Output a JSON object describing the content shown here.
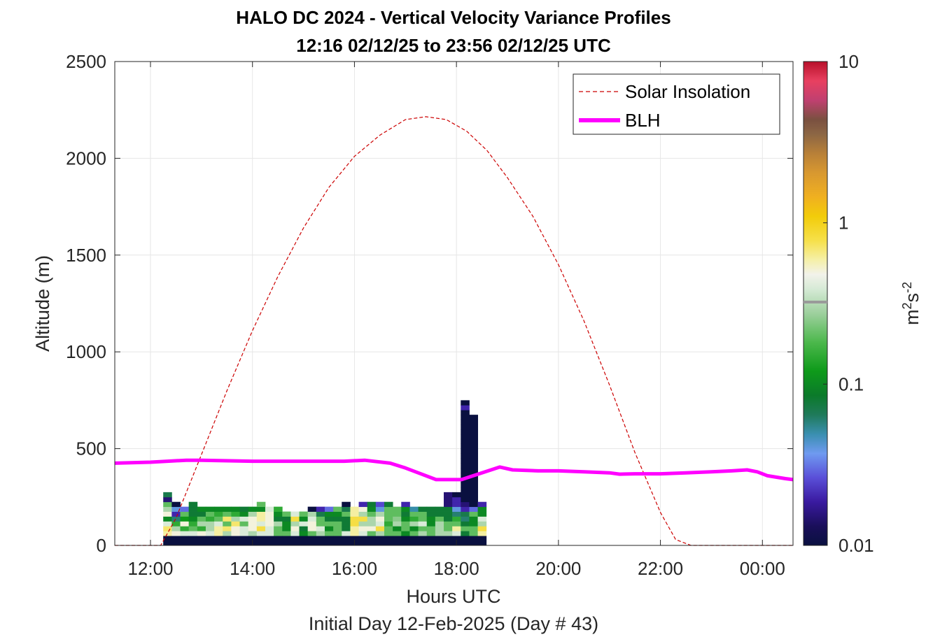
{
  "chart_data": {
    "type": "heatmap",
    "title": [
      "HALO DC 2024 - Vertical Velocity Variance Profiles",
      "12:16 02/12/25 to 23:56 02/12/25  UTC"
    ],
    "xlabel": "Hours UTC",
    "xlabel2": "Initial Day 12-Feb-2025 (Day # 43)",
    "ylabel": "Altitude (m)",
    "xlim": [
      11.3,
      24.6
    ],
    "ylim": [
      0,
      2500
    ],
    "x_ticks": [
      12,
      14,
      16,
      18,
      20,
      22,
      24
    ],
    "x_tick_labels": [
      "12:00",
      "14:00",
      "16:00",
      "18:00",
      "20:00",
      "22:00",
      "00:00"
    ],
    "y_ticks": [
      0,
      500,
      1000,
      1500,
      2000,
      2500
    ],
    "y_tick_labels": [
      "0",
      "500",
      "1000",
      "1500",
      "2000",
      "2500"
    ],
    "grid": true,
    "colorbar": {
      "label": "m²s⁻²",
      "label_base": "m",
      "label_sup1": "2",
      "label_mid": "s",
      "label_sup2": "-2",
      "scale": "log",
      "range": [
        0.01,
        10
      ],
      "ticks": [
        0.01,
        0.1,
        1,
        10
      ],
      "tick_labels": [
        "0.01",
        "0.1",
        "1",
        "10"
      ],
      "colormap_stops": [
        [
          0.0,
          "#0a1040"
        ],
        [
          0.04,
          "#1a0f5a"
        ],
        [
          0.09,
          "#3a1aa0"
        ],
        [
          0.14,
          "#5a4fd8"
        ],
        [
          0.19,
          "#6f9af0"
        ],
        [
          0.23,
          "#3a8fb0"
        ],
        [
          0.27,
          "#1f7a5a"
        ],
        [
          0.31,
          "#0b7a2a"
        ],
        [
          0.36,
          "#0e9a1a"
        ],
        [
          0.42,
          "#4cb84c"
        ],
        [
          0.48,
          "#9ed09e"
        ],
        [
          0.53,
          "#d6ead6"
        ],
        [
          0.56,
          "#f2f2ea"
        ],
        [
          0.59,
          "#f5f0a8"
        ],
        [
          0.63,
          "#f6e04a"
        ],
        [
          0.68,
          "#f2cc0a"
        ],
        [
          0.72,
          "#f0b020"
        ],
        [
          0.77,
          "#d89830"
        ],
        [
          0.81,
          "#b88038"
        ],
        [
          0.85,
          "#8c6644"
        ],
        [
          0.88,
          "#7a5040"
        ],
        [
          0.92,
          "#c04070"
        ],
        [
          0.96,
          "#e84060"
        ],
        [
          1.0,
          "#b8102a"
        ]
      ]
    },
    "legend": {
      "placement": "top-right",
      "entries": [
        {
          "name": "Solar Insolation",
          "style": "dashed",
          "color": "#cc0000"
        },
        {
          "name": "BLH",
          "style": "solid-thick",
          "color": "#ff00ff"
        }
      ]
    },
    "heatmap": {
      "x_start": 12.25,
      "x_step": 0.1667,
      "y_start": 0,
      "y_step": 25,
      "n_rows": 30,
      "columns": [
        [
          0.01,
          0.01,
          0.6,
          0.7,
          0.4,
          0.1,
          0.5,
          0.3,
          0.2,
          0.015,
          0.07
        ],
        [
          0.01,
          0.01,
          0.5,
          0.3,
          0.15,
          0.06,
          0.02,
          0.04,
          0.01
        ],
        [
          0.01,
          0.01,
          0.4,
          0.15,
          0.5,
          0.12,
          0.2,
          0.03
        ],
        [
          0.01,
          0.01,
          0.4,
          0.2,
          0.15,
          0.1,
          0.08,
          0.08,
          0.08
        ],
        [
          0.01,
          0.01,
          0.5,
          0.15,
          0.3,
          0.2,
          0.08,
          0.1
        ],
        [
          0.01,
          0.01,
          0.4,
          0.3,
          0.3,
          0.15,
          0.2,
          0.1
        ],
        [
          0.01,
          0.01,
          0.6,
          0.6,
          0.4,
          0.2,
          0.15,
          0.1
        ],
        [
          0.01,
          0.01,
          0.3,
          0.7,
          0.2,
          0.7,
          0.2,
          0.1
        ],
        [
          0.01,
          0.01,
          0.5,
          0.5,
          0.7,
          0.3,
          0.15,
          0.1
        ],
        [
          0.01,
          0.01,
          0.4,
          0.4,
          0.2,
          0.4,
          0.1,
          0.08
        ],
        [
          0.01,
          0.01,
          0.3,
          0.5,
          0.5,
          0.5,
          0.3,
          0.1
        ],
        [
          0.01,
          0.01,
          0.4,
          0.8,
          0.4,
          0.6,
          0.6,
          0.1,
          0.2
        ],
        [
          0.01,
          0.01,
          0.4,
          0.4,
          0.5,
          0.5,
          0.5,
          0.4
        ],
        [
          0.01,
          0.01,
          0.2,
          0.2,
          0.3,
          0.08,
          0.1,
          0.15
        ],
        [
          0.01,
          0.01,
          0.2,
          0.1,
          0.1,
          0.08,
          0.2
        ],
        [
          0.01,
          0.01,
          0.4,
          0.5,
          0.3,
          0.8,
          0.4
        ],
        [
          0.01,
          0.01,
          0.1,
          0.08,
          0.4,
          0.1,
          0.2
        ],
        [
          0.01,
          0.01,
          0.2,
          0.5,
          0.5,
          0.4,
          0.3,
          0.01
        ],
        [
          0.01,
          0.01,
          0.3,
          0.4,
          0.2,
          0.2,
          0.07,
          0.02
        ],
        [
          0.01,
          0.01,
          0.2,
          0.1,
          0.2,
          0.08,
          0.1,
          0.03
        ],
        [
          0.01,
          0.01,
          0.2,
          0.2,
          0.2,
          0.08,
          0.1,
          0.2
        ],
        [
          0.01,
          0.01,
          0.4,
          0.08,
          0.08,
          0.08,
          0.2,
          0.07,
          0.01
        ],
        [
          0.01,
          0.01,
          0.6,
          0.6,
          0.8,
          0.8,
          0.6,
          0.6
        ],
        [
          0.01,
          0.01,
          0.4,
          0.5,
          0.3,
          0.8,
          0.3,
          0.5,
          0.02
        ],
        [
          0.01,
          0.01,
          0.2,
          0.5,
          0.3,
          0.3,
          0.2,
          0.1,
          0.08
        ],
        [
          0.01,
          0.01,
          0.3,
          0.8,
          0.4,
          0.5,
          0.3,
          0.04,
          0.025
        ],
        [
          0.01,
          0.01,
          0.2,
          0.2,
          0.15,
          0.2,
          0.2,
          0.2,
          0.08
        ],
        [
          0.01,
          0.01,
          0.2,
          0.1,
          0.3,
          0.25,
          0.2,
          0.2
        ],
        [
          0.01,
          0.01,
          0.1,
          0.2,
          0.2,
          0.1,
          0.08,
          0.1,
          0.02
        ],
        [
          0.01,
          0.01,
          0.2,
          0.1,
          0.3,
          0.15,
          0.2,
          0.05
        ],
        [
          0.01,
          0.01,
          0.3,
          0.2,
          0.4,
          0.2,
          0.2,
          0.08
        ],
        [
          0.01,
          0.01,
          0.2,
          0.2,
          0.1,
          0.1,
          0.08,
          0.08
        ],
        [
          0.01,
          0.01,
          0.3,
          0.3,
          0.3,
          0.2,
          0.08,
          0.08
        ],
        [
          0.01,
          0.01,
          0.3,
          0.2,
          0.2,
          0.08,
          0.08,
          0.08,
          0.015,
          0.015,
          0.015
        ],
        [
          0.01,
          0.01,
          0.4,
          0.6,
          0.2,
          0.15,
          0.06,
          0.04,
          0.02,
          0.02,
          0.01
        ],
        [
          0.01,
          0.01,
          0.08,
          0.2,
          0.08,
          0.06,
          0.07,
          0.02,
          0.015,
          0.01,
          0.01,
          0.01,
          0.01,
          0.01,
          0.01,
          0.01,
          0.01,
          0.01,
          0.01,
          0.01,
          0.01,
          0.01,
          0.01,
          0.01,
          0.01,
          0.01,
          0.01,
          0.01,
          0.02,
          0.01
        ],
        [
          0.01,
          0.01,
          0.2,
          0.2,
          0.1,
          0.1,
          0.2,
          0.03,
          0.01,
          0.01,
          0.01,
          0.01,
          0.01,
          0.01,
          0.01,
          0.01,
          0.01,
          0.01,
          0.01,
          0.01,
          0.01,
          0.01,
          0.01,
          0.01,
          0.01,
          0.01,
          0.01
        ],
        [
          0.01,
          0.01,
          0.6,
          0.8,
          0.3,
          0.4,
          0.1,
          0.1,
          0.02
        ]
      ]
    },
    "series": [
      {
        "name": "Solar Insolation",
        "type": "line",
        "x": [
          11.3,
          12.05,
          12.2,
          12.5,
          13.0,
          13.5,
          14.0,
          14.5,
          15.0,
          15.5,
          16.0,
          16.5,
          17.0,
          17.4,
          17.8,
          18.2,
          18.6,
          19.0,
          19.5,
          20.0,
          20.5,
          21.0,
          21.5,
          22.0,
          22.3,
          22.6,
          22.8,
          24.6
        ],
        "y": [
          0,
          0,
          0,
          140,
          470,
          800,
          1110,
          1390,
          1640,
          1850,
          2010,
          2120,
          2200,
          2215,
          2200,
          2140,
          2040,
          1900,
          1700,
          1450,
          1160,
          830,
          480,
          170,
          30,
          0,
          0,
          0
        ]
      },
      {
        "name": "BLH",
        "type": "line",
        "x": [
          11.3,
          12.0,
          12.7,
          13.0,
          14.0,
          15.0,
          15.8,
          16.2,
          16.7,
          17.0,
          17.3,
          17.6,
          18.1,
          18.5,
          18.85,
          19.1,
          19.6,
          20.0,
          20.5,
          21.0,
          21.2,
          21.5,
          22.0,
          22.5,
          23.0,
          23.4,
          23.7,
          23.9,
          24.1,
          24.45,
          24.6
        ],
        "y": [
          425,
          430,
          440,
          440,
          435,
          435,
          435,
          440,
          425,
          400,
          370,
          340,
          340,
          375,
          405,
          390,
          385,
          385,
          380,
          375,
          368,
          370,
          370,
          375,
          380,
          385,
          390,
          380,
          360,
          345,
          340
        ]
      }
    ]
  }
}
